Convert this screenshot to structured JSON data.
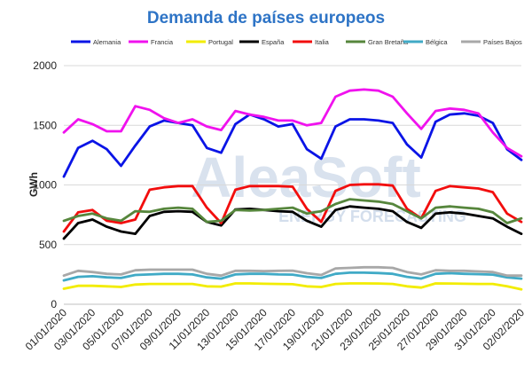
{
  "chart_data": {
    "type": "line",
    "title": "Demanda de países europeos",
    "ylabel": "GWh",
    "xlabel": "",
    "ylim": [
      0,
      2000
    ],
    "yticks": [
      0,
      500,
      1000,
      1500,
      2000
    ],
    "grid": "horizontal",
    "legend_position": "top",
    "watermark": {
      "brand": "AleaSoft",
      "tagline": "ENERGY FORECASTING"
    },
    "x": [
      "01/01/2020",
      "02/01/2020",
      "03/01/2020",
      "04/01/2020",
      "05/01/2020",
      "06/01/2020",
      "07/01/2020",
      "08/01/2020",
      "09/01/2020",
      "10/01/2020",
      "11/01/2020",
      "12/01/2020",
      "13/01/2020",
      "14/01/2020",
      "15/01/2020",
      "16/01/2020",
      "17/01/2020",
      "18/01/2020",
      "19/01/2020",
      "20/01/2020",
      "21/01/2020",
      "22/01/2020",
      "23/01/2020",
      "24/01/2020",
      "25/01/2020",
      "26/01/2020",
      "27/01/2020",
      "28/01/2020",
      "29/01/2020",
      "30/01/2020",
      "31/01/2020",
      "01/02/2020",
      "02/02/2020"
    ],
    "xtick_labels": [
      "01/01/2020",
      "03/01/2020",
      "05/01/2020",
      "07/01/2020",
      "09/01/2020",
      "11/01/2020",
      "13/01/2020",
      "15/01/2020",
      "17/01/2020",
      "19/01/2020",
      "21/01/2020",
      "23/01/2020",
      "25/01/2020",
      "27/01/2020",
      "29/01/2020",
      "31/01/2020",
      "02/02/2020"
    ],
    "series": [
      {
        "name": "Alemania",
        "color": "#0a14e6",
        "values": [
          1070,
          1310,
          1370,
          1300,
          1160,
          1330,
          1490,
          1540,
          1520,
          1500,
          1310,
          1270,
          1510,
          1590,
          1550,
          1490,
          1510,
          1300,
          1220,
          1490,
          1550,
          1550,
          1540,
          1520,
          1340,
          1230,
          1530,
          1590,
          1600,
          1580,
          1520,
          1300,
          1210
        ]
      },
      {
        "name": "Francia",
        "color": "#f012ee",
        "values": [
          1440,
          1550,
          1510,
          1450,
          1450,
          1660,
          1630,
          1560,
          1520,
          1550,
          1490,
          1460,
          1620,
          1590,
          1570,
          1540,
          1540,
          1500,
          1520,
          1740,
          1790,
          1800,
          1790,
          1740,
          1600,
          1470,
          1620,
          1640,
          1630,
          1600,
          1440,
          1310,
          1240
        ]
      },
      {
        "name": "Portugal",
        "color": "#f2ec00",
        "values": [
          130,
          155,
          155,
          150,
          145,
          165,
          170,
          170,
          170,
          170,
          150,
          148,
          175,
          175,
          172,
          170,
          168,
          150,
          145,
          170,
          175,
          175,
          174,
          170,
          150,
          140,
          175,
          174,
          172,
          170,
          170,
          150,
          125
        ]
      },
      {
        "name": "España",
        "color": "#000000",
        "values": [
          550,
          680,
          710,
          650,
          610,
          590,
          740,
          775,
          780,
          775,
          690,
          660,
          795,
          800,
          790,
          780,
          775,
          700,
          650,
          790,
          820,
          810,
          800,
          780,
          690,
          640,
          760,
          770,
          760,
          740,
          720,
          650,
          590
        ]
      },
      {
        "name": "Italia",
        "color": "#f20d0d",
        "values": [
          610,
          770,
          790,
          700,
          680,
          710,
          960,
          980,
          990,
          990,
          810,
          680,
          960,
          990,
          990,
          990,
          985,
          800,
          690,
          950,
          1000,
          1005,
          1005,
          995,
          800,
          720,
          950,
          990,
          980,
          970,
          940,
          760,
          690
        ]
      },
      {
        "name": "Gran Bretaña",
        "color": "#56863c",
        "values": [
          700,
          740,
          760,
          720,
          700,
          780,
          775,
          800,
          810,
          800,
          690,
          700,
          790,
          785,
          790,
          800,
          810,
          760,
          780,
          840,
          880,
          870,
          860,
          840,
          780,
          720,
          810,
          820,
          810,
          800,
          770,
          680,
          720
        ]
      },
      {
        "name": "Bélgica",
        "color": "#40aac6",
        "values": [
          200,
          230,
          235,
          225,
          220,
          245,
          250,
          255,
          255,
          250,
          225,
          215,
          250,
          255,
          255,
          250,
          248,
          230,
          220,
          255,
          265,
          265,
          262,
          255,
          230,
          215,
          255,
          260,
          255,
          252,
          248,
          225,
          215
        ]
      },
      {
        "name": "Países Bajos",
        "color": "#a8a8a8",
        "values": [
          240,
          280,
          270,
          255,
          250,
          285,
          290,
          290,
          290,
          290,
          255,
          240,
          280,
          280,
          278,
          280,
          282,
          260,
          245,
          300,
          305,
          310,
          310,
          305,
          270,
          250,
          285,
          280,
          280,
          275,
          270,
          240,
          240
        ]
      }
    ]
  }
}
